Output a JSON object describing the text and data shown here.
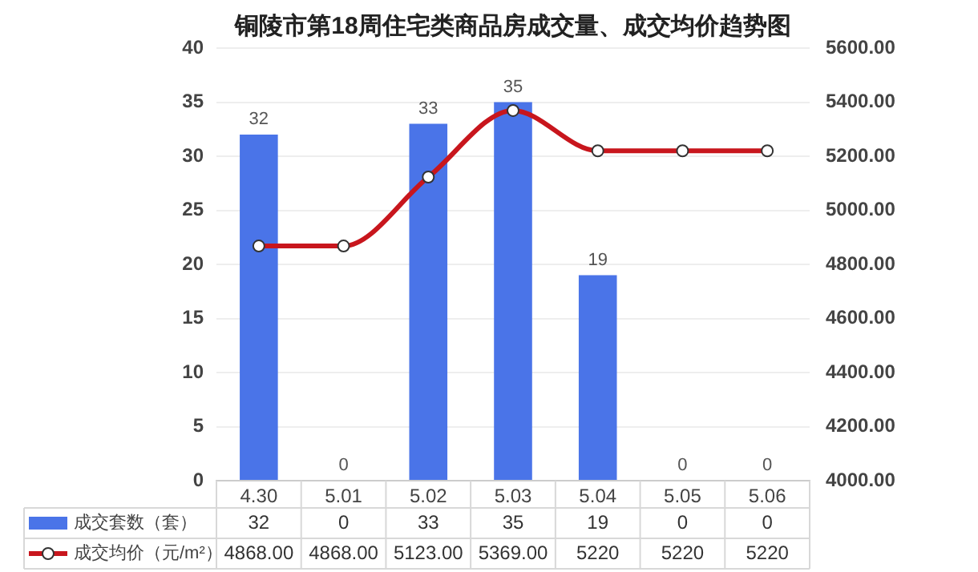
{
  "chart_data": {
    "type": "bar",
    "title": "铜陵市第18周住宅类商品房成交量、成交均价趋势图",
    "categories": [
      "4.30",
      "5.01",
      "5.02",
      "5.03",
      "5.04",
      "5.05",
      "5.06"
    ],
    "series": [
      {
        "name": "成交套数（套）",
        "color": "#4a74e8",
        "values": [
          32,
          0,
          33,
          35,
          19,
          0,
          0
        ],
        "value_labels": [
          "32",
          "0",
          "33",
          "35",
          "19",
          "0",
          "0"
        ]
      },
      {
        "name": "成交均价（元/m²）",
        "type": "line",
        "axis": "y2",
        "color": "#c8161d",
        "values": [
          4868,
          4868,
          5123,
          5369,
          5220,
          5220,
          5220
        ],
        "value_labels": [
          "4868.00",
          "4868.00",
          "5123.00",
          "5369.00",
          "5220",
          "5220",
          "5220"
        ]
      }
    ],
    "ylim": [
      0,
      40
    ],
    "yticks": [
      0,
      5,
      10,
      15,
      20,
      25,
      30,
      35,
      40
    ],
    "y2lim": [
      4000,
      5600
    ],
    "y2ticks": [
      {
        "value": 4000,
        "label": "4000.00"
      },
      {
        "value": 4200,
        "label": "4200.00"
      },
      {
        "value": 4400,
        "label": "4400.00"
      },
      {
        "value": 4600,
        "label": "4600.00"
      },
      {
        "value": 4800,
        "label": "4800.00"
      },
      {
        "value": 5000,
        "label": "5000.00"
      },
      {
        "value": 5200,
        "label": "5200.00"
      },
      {
        "value": 5400,
        "label": "5400.00"
      },
      {
        "value": 5600,
        "label": "5600.00"
      }
    ],
    "grid": "y",
    "legend": "bottom left",
    "data_labels": true,
    "marker": "circle",
    "line_style": "solid"
  }
}
